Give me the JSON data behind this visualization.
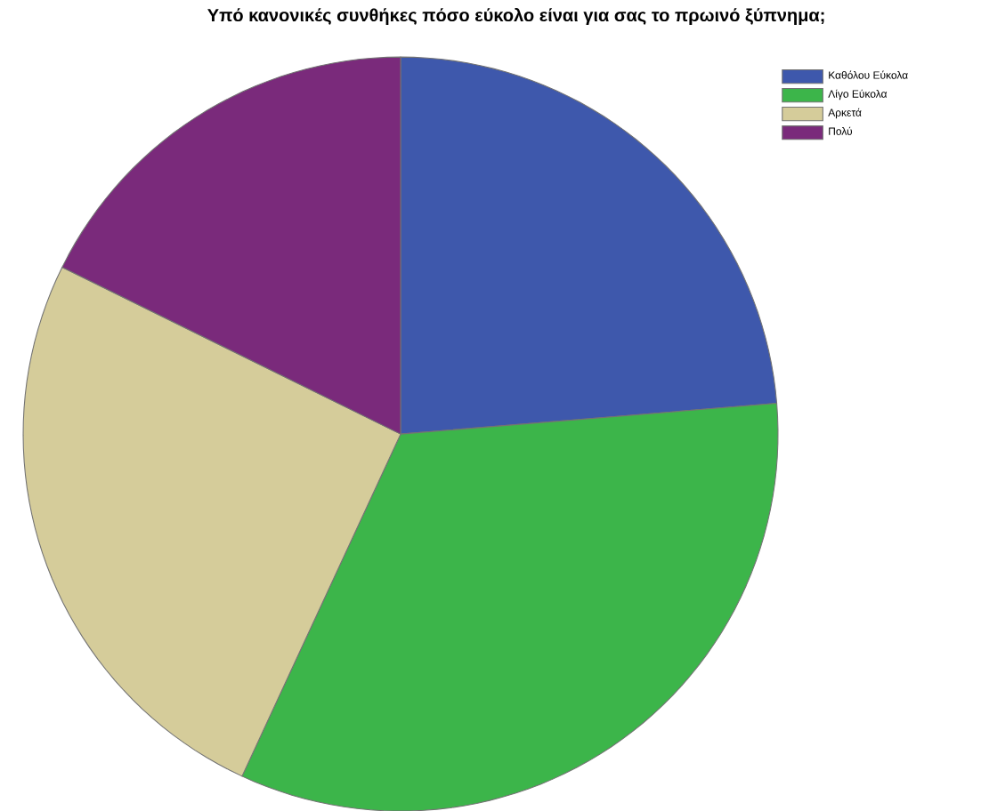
{
  "chart_data": {
    "type": "pie",
    "title": "Υπό κανονικές συνθήκες πόσο εύκολο είναι για σας το πρωινό ξύπνημα;",
    "categories": [
      "Καθόλου Εύκολα",
      "Λίγο Εύκολα",
      "Αρκετά",
      "Πολύ"
    ],
    "values": [
      23.7,
      33.2,
      25.4,
      17.7
    ],
    "colors": [
      "#3e58ac",
      "#3cb54a",
      "#d5cc9a",
      "#7a2a7b"
    ],
    "legend": "top right"
  }
}
